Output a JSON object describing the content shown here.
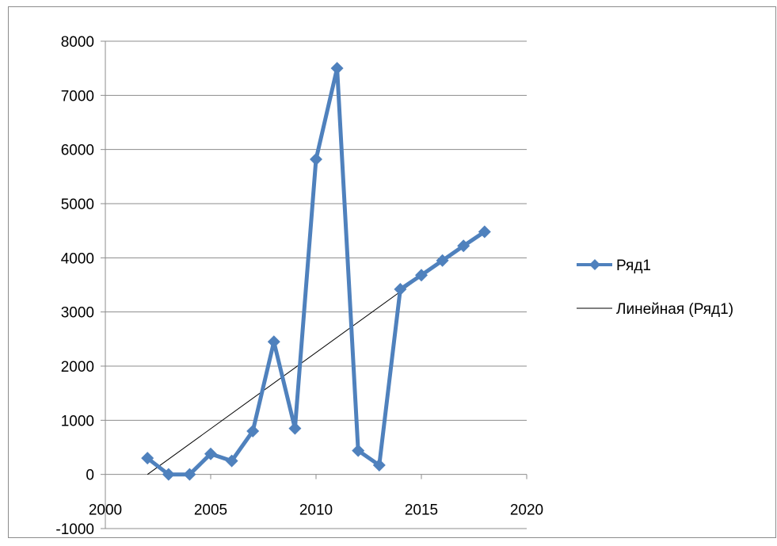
{
  "chart_data": {
    "type": "line",
    "title": "",
    "xlabel": "",
    "ylabel": "",
    "xlim": [
      2000,
      2020
    ],
    "ylim": [
      -1000,
      8000
    ],
    "x_ticks": [
      2000,
      2005,
      2010,
      2015,
      2020
    ],
    "y_ticks": [
      -1000,
      0,
      1000,
      2000,
      3000,
      4000,
      5000,
      6000,
      7000,
      8000
    ],
    "grid": "horizontal",
    "legend_position": "right",
    "series": [
      {
        "name": "Ряд1",
        "color": "#4f81bd",
        "marker": "diamond",
        "x": [
          2002,
          2003,
          2004,
          2005,
          2006,
          2007,
          2008,
          2009,
          2010,
          2011,
          2012,
          2013,
          2014,
          2015,
          2016,
          2017,
          2018
        ],
        "y": [
          300,
          0,
          0,
          380,
          250,
          800,
          2450,
          850,
          5820,
          7500,
          440,
          170,
          3420,
          3680,
          3950,
          4220,
          4480
        ]
      }
    ],
    "trendline": {
      "name": "Линейная (Ряд1)",
      "type": "linear",
      "color": "#000000",
      "x": [
        2002,
        2018
      ],
      "y": [
        0,
        4500
      ]
    }
  }
}
